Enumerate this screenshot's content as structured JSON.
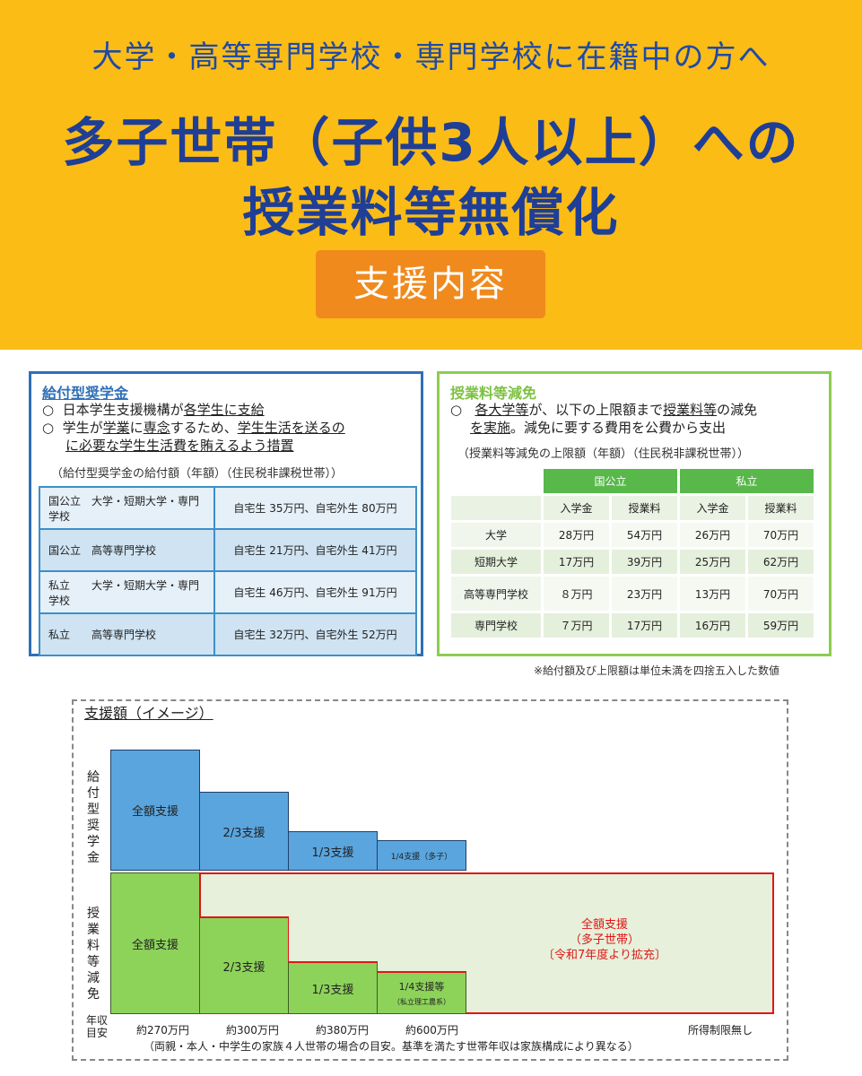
{
  "header": {
    "subtitle": "大学・高等専門学校・専門学校に在籍中の方へ",
    "title_line1": "多子世帯（子供3人以上）への",
    "title_line2": "授業料等無償化",
    "badge": "支援内容"
  },
  "scholarship": {
    "title": "給付型奨学金",
    "bullet1_mark": "○",
    "bullet1_a": "日本学生支援機構が",
    "bullet1_b": "各学生に支給",
    "bullet2_mark": "○",
    "bullet2_a": "学生が",
    "bullet2_b": "学業",
    "bullet2_c": "に",
    "bullet2_d": "専念",
    "bullet2_e": "するため、",
    "bullet2_f": "学生生活を送るの",
    "bullet2_g": "に必要な学生生活費を賄えるよう措置",
    "table_note": "（給付型奨学金の給付額（年額）（住民税非課税世帯））",
    "rows": [
      {
        "label": "国公立　大学・短期大学・専門学校",
        "amount": "自宅生 35万円、自宅外生 80万円"
      },
      {
        "label": "国公立　高等専門学校",
        "amount": "自宅生 21万円、自宅外生 41万円"
      },
      {
        "label": "私立　　大学・短期大学・専門学校",
        "amount": "自宅生 46万円、自宅外生 91万円"
      },
      {
        "label": "私立　　高等専門学校",
        "amount": "自宅生 32万円、自宅外生 52万円"
      }
    ]
  },
  "tuition": {
    "title": "授業料等減免",
    "bullet1_mark": "○",
    "bullet1_a": "各大学等",
    "bullet1_b": "が、以下の上限額まで",
    "bullet1_c": "授業料等",
    "bullet1_d": "の減免",
    "bullet1_e": "を実施",
    "bullet1_f": "。減免に要する費用を公費から支出",
    "table_note": "（授業料等減免の上限額（年額）（住民税非課税世帯））",
    "group1": "国公立",
    "group2": "私立",
    "col_a": "入学金",
    "col_b": "授業料",
    "rows": [
      {
        "label": "大学",
        "v1": "28万円",
        "v2": "54万円",
        "v3": "26万円",
        "v4": "70万円"
      },
      {
        "label": "短期大学",
        "v1": "17万円",
        "v2": "39万円",
        "v3": "25万円",
        "v4": "62万円"
      },
      {
        "label": "高等専門学校",
        "v1": "８万円",
        "v2": "23万円",
        "v3": "13万円",
        "v4": "70万円"
      },
      {
        "label": "専門学校",
        "v1": "７万円",
        "v2": "17万円",
        "v3": "16万円",
        "v4": "59万円"
      }
    ]
  },
  "footnote": "※給付額及び上限額は単位未満を四捨五入した数値",
  "image_section": {
    "title": "支援額（イメージ）",
    "left_label_top": "給付型奨学金",
    "left_label_bottom": "授業料等減免",
    "scholarship_blocks": [
      "全額支援",
      "2/3支援",
      "1/3支援",
      "1/4支援（多子）"
    ],
    "tuition_blocks": [
      "全額支援",
      "2/3支援",
      "1/3支援",
      "1/4支援等",
      "（私立理工農系）"
    ],
    "red_line1": "全額支援",
    "red_line2": "（多子世帯）",
    "red_line3": "〔令和7年度より拡充〕",
    "axis_title": "年収目安",
    "axis_labels": [
      "約270万円",
      "約300万円",
      "約380万円",
      "約600万円",
      "所得制限無し"
    ],
    "axis_note": "（両親・本人・中学生の家族４人世帯の場合の目安。基準を満たす世帯年収は家族構成により異なる）"
  },
  "colors": {
    "header_bg": "#fbbc16",
    "title_blue": "#1f3e96",
    "badge_orange": "#f08a1d",
    "scholarship_blue": "#5aa5de",
    "tuition_green": "#8dd35a",
    "expansion_red": "#e01616"
  }
}
